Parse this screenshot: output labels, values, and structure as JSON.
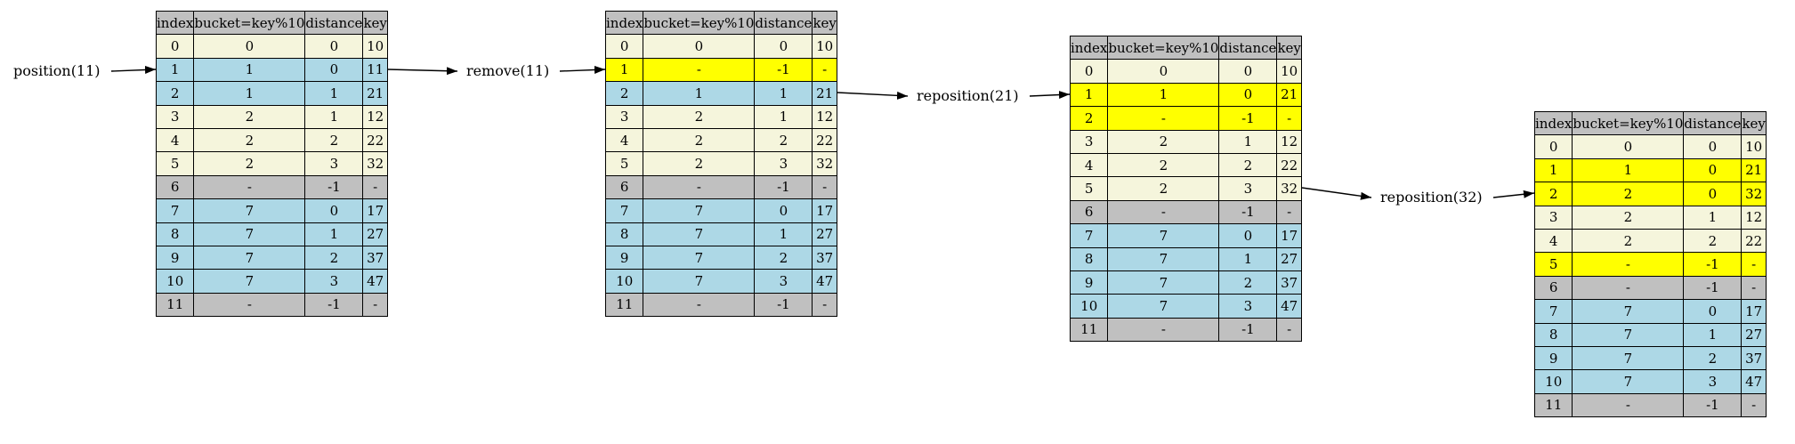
{
  "header_labels": [
    "index",
    "bucket=key%10",
    "distance",
    "key"
  ],
  "colors": {
    "header": "#c0c0c0",
    "home_bucket_run": "#f5f5dc",
    "chain_run": "#add8e6",
    "empty": "#c0c0c0",
    "changed": "#ffff00"
  },
  "operations": [
    {
      "name": "position-op",
      "label": "position(11)"
    },
    {
      "name": "remove-op",
      "label": "remove(11)"
    },
    {
      "name": "reposition-21-op",
      "label": "reposition(21)"
    },
    {
      "name": "reposition-32-op",
      "label": "reposition(32)"
    }
  ],
  "tables": [
    {
      "name": "table-initial",
      "rows": [
        {
          "index": "0",
          "bucket": "0",
          "distance": "0",
          "key": "10",
          "state": "hash"
        },
        {
          "index": "1",
          "bucket": "1",
          "distance": "0",
          "key": "11",
          "state": "chain"
        },
        {
          "index": "2",
          "bucket": "1",
          "distance": "1",
          "key": "21",
          "state": "chain"
        },
        {
          "index": "3",
          "bucket": "2",
          "distance": "1",
          "key": "12",
          "state": "hash"
        },
        {
          "index": "4",
          "bucket": "2",
          "distance": "2",
          "key": "22",
          "state": "hash"
        },
        {
          "index": "5",
          "bucket": "2",
          "distance": "3",
          "key": "32",
          "state": "hash"
        },
        {
          "index": "6",
          "bucket": "-",
          "distance": "-1",
          "key": "-",
          "state": "empty"
        },
        {
          "index": "7",
          "bucket": "7",
          "distance": "0",
          "key": "17",
          "state": "chain"
        },
        {
          "index": "8",
          "bucket": "7",
          "distance": "1",
          "key": "27",
          "state": "chain"
        },
        {
          "index": "9",
          "bucket": "7",
          "distance": "2",
          "key": "37",
          "state": "chain"
        },
        {
          "index": "10",
          "bucket": "7",
          "distance": "3",
          "key": "47",
          "state": "chain"
        },
        {
          "index": "11",
          "bucket": "-",
          "distance": "-1",
          "key": "-",
          "state": "empty"
        }
      ]
    },
    {
      "name": "table-after-remove",
      "rows": [
        {
          "index": "0",
          "bucket": "0",
          "distance": "0",
          "key": "10",
          "state": "hash"
        },
        {
          "index": "1",
          "bucket": "-",
          "distance": "-1",
          "key": "-",
          "state": "hl"
        },
        {
          "index": "2",
          "bucket": "1",
          "distance": "1",
          "key": "21",
          "state": "chain"
        },
        {
          "index": "3",
          "bucket": "2",
          "distance": "1",
          "key": "12",
          "state": "hash"
        },
        {
          "index": "4",
          "bucket": "2",
          "distance": "2",
          "key": "22",
          "state": "hash"
        },
        {
          "index": "5",
          "bucket": "2",
          "distance": "3",
          "key": "32",
          "state": "hash"
        },
        {
          "index": "6",
          "bucket": "-",
          "distance": "-1",
          "key": "-",
          "state": "empty"
        },
        {
          "index": "7",
          "bucket": "7",
          "distance": "0",
          "key": "17",
          "state": "chain"
        },
        {
          "index": "8",
          "bucket": "7",
          "distance": "1",
          "key": "27",
          "state": "chain"
        },
        {
          "index": "9",
          "bucket": "7",
          "distance": "2",
          "key": "37",
          "state": "chain"
        },
        {
          "index": "10",
          "bucket": "7",
          "distance": "3",
          "key": "47",
          "state": "chain"
        },
        {
          "index": "11",
          "bucket": "-",
          "distance": "-1",
          "key": "-",
          "state": "empty"
        }
      ]
    },
    {
      "name": "table-after-reposition-21",
      "rows": [
        {
          "index": "0",
          "bucket": "0",
          "distance": "0",
          "key": "10",
          "state": "hash"
        },
        {
          "index": "1",
          "bucket": "1",
          "distance": "0",
          "key": "21",
          "state": "hl"
        },
        {
          "index": "2",
          "bucket": "-",
          "distance": "-1",
          "key": "-",
          "state": "hl"
        },
        {
          "index": "3",
          "bucket": "2",
          "distance": "1",
          "key": "12",
          "state": "hash"
        },
        {
          "index": "4",
          "bucket": "2",
          "distance": "2",
          "key": "22",
          "state": "hash"
        },
        {
          "index": "5",
          "bucket": "2",
          "distance": "3",
          "key": "32",
          "state": "hash"
        },
        {
          "index": "6",
          "bucket": "-",
          "distance": "-1",
          "key": "-",
          "state": "empty"
        },
        {
          "index": "7",
          "bucket": "7",
          "distance": "0",
          "key": "17",
          "state": "chain"
        },
        {
          "index": "8",
          "bucket": "7",
          "distance": "1",
          "key": "27",
          "state": "chain"
        },
        {
          "index": "9",
          "bucket": "7",
          "distance": "2",
          "key": "37",
          "state": "chain"
        },
        {
          "index": "10",
          "bucket": "7",
          "distance": "3",
          "key": "47",
          "state": "chain"
        },
        {
          "index": "11",
          "bucket": "-",
          "distance": "-1",
          "key": "-",
          "state": "empty"
        }
      ]
    },
    {
      "name": "table-after-reposition-32",
      "rows": [
        {
          "index": "0",
          "bucket": "0",
          "distance": "0",
          "key": "10",
          "state": "hash"
        },
        {
          "index": "1",
          "bucket": "1",
          "distance": "0",
          "key": "21",
          "state": "hl"
        },
        {
          "index": "2",
          "bucket": "2",
          "distance": "0",
          "key": "32",
          "state": "hl"
        },
        {
          "index": "3",
          "bucket": "2",
          "distance": "1",
          "key": "12",
          "state": "hash"
        },
        {
          "index": "4",
          "bucket": "2",
          "distance": "2",
          "key": "22",
          "state": "hash"
        },
        {
          "index": "5",
          "bucket": "-",
          "distance": "-1",
          "key": "-",
          "state": "hl"
        },
        {
          "index": "6",
          "bucket": "-",
          "distance": "-1",
          "key": "-",
          "state": "empty"
        },
        {
          "index": "7",
          "bucket": "7",
          "distance": "0",
          "key": "17",
          "state": "chain"
        },
        {
          "index": "8",
          "bucket": "7",
          "distance": "1",
          "key": "27",
          "state": "chain"
        },
        {
          "index": "9",
          "bucket": "7",
          "distance": "2",
          "key": "37",
          "state": "chain"
        },
        {
          "index": "10",
          "bucket": "7",
          "distance": "3",
          "key": "47",
          "state": "chain"
        },
        {
          "index": "11",
          "bucket": "-",
          "distance": "-1",
          "key": "-",
          "state": "empty"
        }
      ]
    }
  ]
}
